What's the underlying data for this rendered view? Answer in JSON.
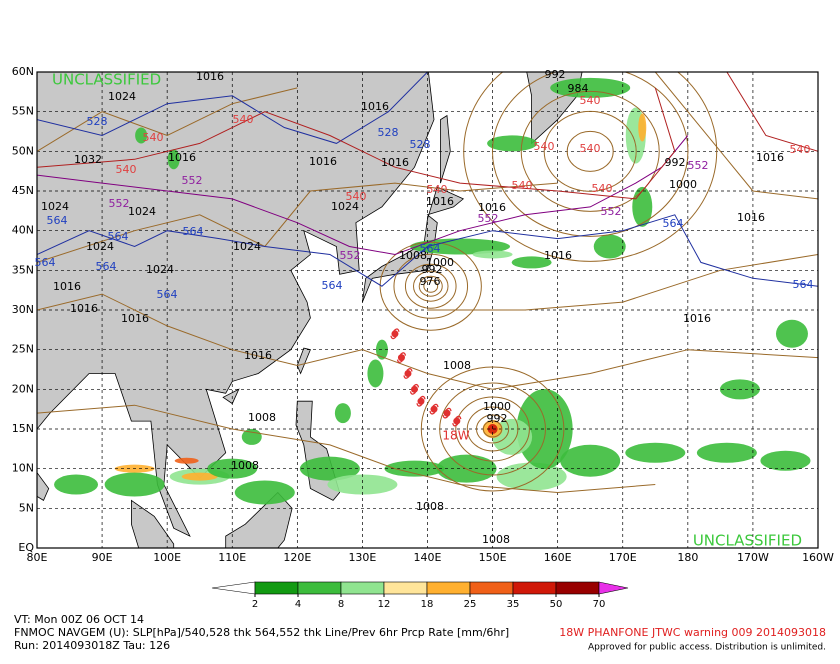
{
  "map": {
    "watermark": [
      "UNCLASSIFIED",
      "UNCLASSIFIED"
    ],
    "lat_labels": [
      "60N",
      "55N",
      "50N",
      "45N",
      "40N",
      "35N",
      "30N",
      "25N",
      "20N",
      "15N",
      "10N",
      "5N",
      "EQ"
    ],
    "lon_labels": [
      "80E",
      "90E",
      "100E",
      "110E",
      "120E",
      "130E",
      "140E",
      "150E",
      "160E",
      "170E",
      "180",
      "170W",
      "160W"
    ],
    "slp_labels": [
      1016,
      1024,
      1016,
      1032,
      1016,
      1016,
      1016,
      1024,
      1024,
      1024,
      1024,
      1024,
      1024,
      1016,
      1016,
      1016,
      1016,
      1008,
      1008,
      1008,
      1008,
      1008,
      1016,
      1016,
      1016,
      1016,
      1016,
      1000,
      992,
      1000,
      992,
      1008,
      1000,
      992,
      976,
      1016,
      992,
      984
    ],
    "thk_528_564_labels": [
      528,
      528,
      528,
      564,
      564,
      564,
      564,
      564,
      564,
      564,
      564,
      564,
      564
    ],
    "thk_552_labels": [
      552,
      552,
      552,
      552,
      552,
      552
    ],
    "thk_540_labels": [
      540,
      540,
      540,
      540,
      540,
      540,
      540,
      540,
      540,
      540,
      540
    ],
    "storm_label": "18W"
  },
  "colorbar": {
    "levels": [
      2,
      4,
      8,
      12,
      18,
      25,
      35,
      50,
      70
    ],
    "colors": [
      "#ffffff",
      "#129a12",
      "#3cbc3c",
      "#90e490",
      "#ffe59a",
      "#ffb030",
      "#f06018",
      "#d01808",
      "#980000",
      "#e830e8"
    ]
  },
  "footer": {
    "valid_time": "VT: Mon 00Z 06 OCT 14",
    "description": "FNMOC NAVGEM (U): SLP[hPa]/540,528 thk 564,552 thk Line/Prev 6hr Prcp Rate [mm/6hr]",
    "run": "Run: 2014093018Z Tau: 126",
    "warning": "18W PHANFONE JTWC warning 009 2014093018",
    "approval": "Approved for public access. Distribution is unlimited."
  }
}
